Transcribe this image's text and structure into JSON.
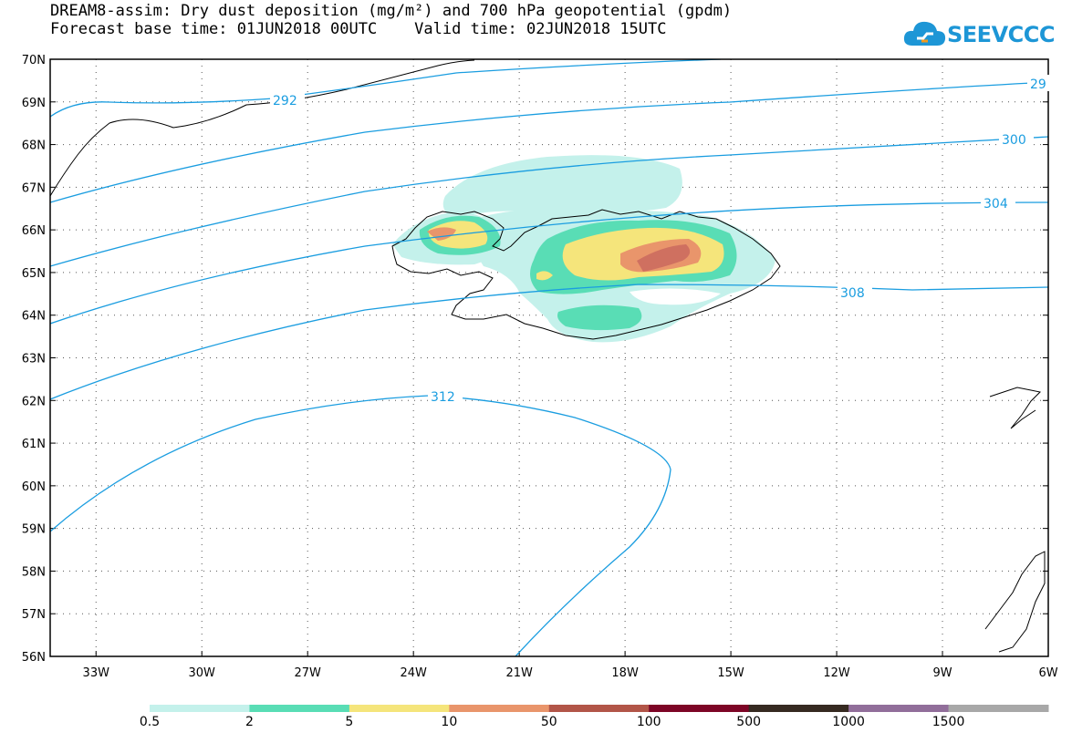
{
  "title": {
    "line1": "DREAM8-assim: Dry dust deposition (mg/m²) and 700 hPa geopotential (gpdm)",
    "line2": "Forecast base time: 01JUN2018 00UTC    Valid time: 02JUN2018 15UTC"
  },
  "logo": {
    "text": "SEEVCCC",
    "icon": "cloud-icon",
    "color": "#1d96d6"
  },
  "axes": {
    "lat_labels": [
      "70N",
      "69N",
      "68N",
      "67N",
      "66N",
      "65N",
      "64N",
      "63N",
      "62N",
      "61N",
      "60N",
      "59N",
      "58N",
      "57N",
      "56N"
    ],
    "lon_labels": [
      "33W",
      "30W",
      "27W",
      "24W",
      "21W",
      "18W",
      "15W",
      "12W",
      "9W",
      "6W"
    ],
    "lat_range": [
      56,
      70
    ],
    "lon_range": [
      -34.3,
      -6
    ]
  },
  "contours": {
    "color": "#1a9de0",
    "labels": [
      "292",
      "29",
      "300",
      "304",
      "308",
      "312"
    ]
  },
  "legend": {
    "colors": [
      "#c4f1eb",
      "#59ddb5",
      "#f5e57b",
      "#e9956b",
      "#b25548",
      "#7d0526",
      "#362a21",
      "#916e9a",
      "#a8a8a8"
    ],
    "labels": [
      "0.5",
      "2",
      "5",
      "10",
      "50",
      "100",
      "500",
      "1000",
      "1500"
    ]
  }
}
